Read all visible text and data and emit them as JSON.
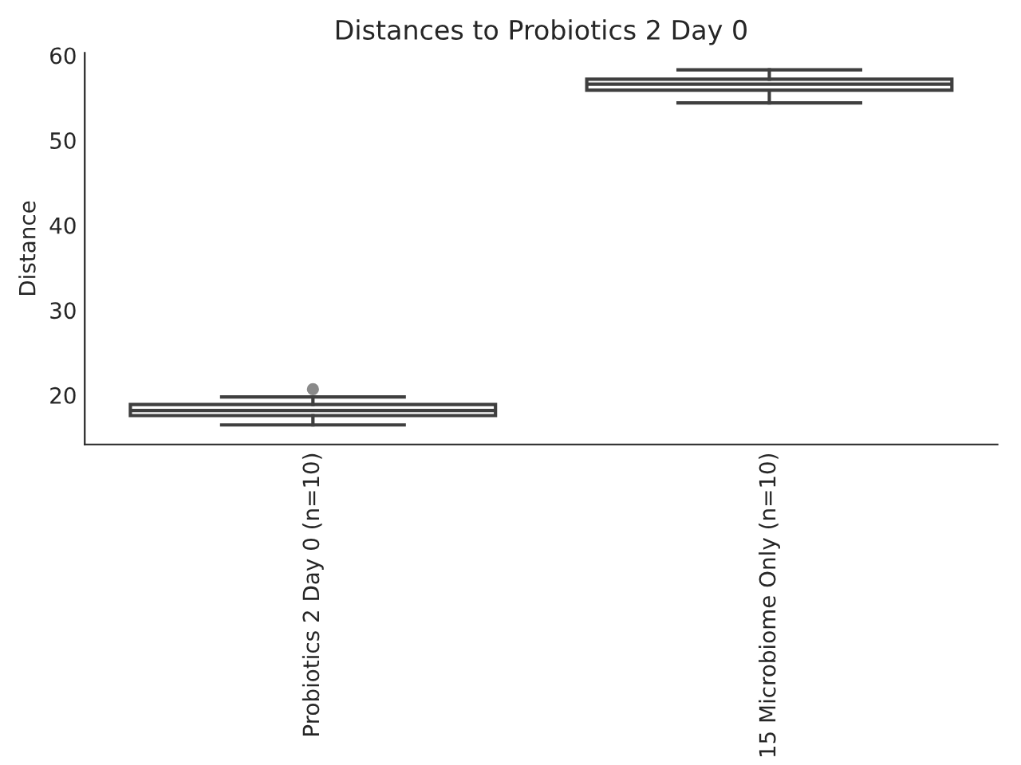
{
  "chart_data": {
    "type": "box",
    "title": "Distances to Probiotics 2 Day 0",
    "ylabel": "Distance",
    "categories": [
      "Probiotics 2 Day 0 (n=10)",
      "15 Microbiome Only (n=10)"
    ],
    "boxes": [
      {
        "low": 16.5,
        "q1": 17.6,
        "median": 18.2,
        "q3": 18.9,
        "high": 19.8,
        "outliers": [
          20.7
        ]
      },
      {
        "low": 54.4,
        "q1": 55.9,
        "median": 56.6,
        "q3": 57.2,
        "high": 58.3
      }
    ],
    "color": "#3f3f3f",
    "ylim": [
      14.2,
      60.3
    ],
    "yticks": [
      20,
      30,
      40,
      50,
      60
    ],
    "grid": false,
    "legend": false
  }
}
